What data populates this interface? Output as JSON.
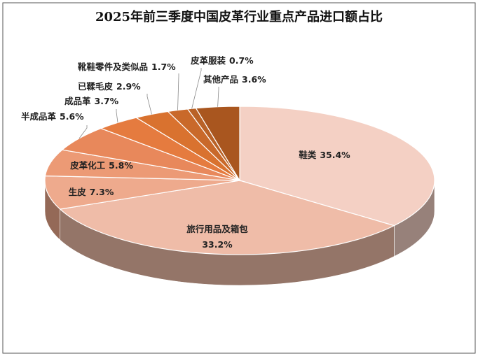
{
  "chart_data": {
    "type": "pie3d",
    "title": "2025年前三季度中国皮革行业重点产品进口额占比",
    "categories": [
      "鞋类",
      "旅行用品及箱包",
      "生皮",
      "皮革化工",
      "半成品革",
      "成品革",
      "已鞣毛皮",
      "靴鞋零件及类似品",
      "皮革服装",
      "其他产品"
    ],
    "values": [
      35.4,
      33.2,
      7.3,
      5.8,
      5.6,
      3.7,
      2.9,
      1.7,
      0.7,
      3.6
    ],
    "value_labels": [
      "35.4%",
      "33.2%",
      "7.3%",
      "5.8%",
      "5.6%",
      "3.7%",
      "2.9%",
      "1.7%",
      "0.7%",
      "3.6%"
    ],
    "colors": [
      "#f4d0c4",
      "#efbca8",
      "#eeaa8d",
      "#ec9a75",
      "#e8885b",
      "#e57b3f",
      "#d9722f",
      "#c9692a",
      "#b96227",
      "#a9561f"
    ]
  }
}
